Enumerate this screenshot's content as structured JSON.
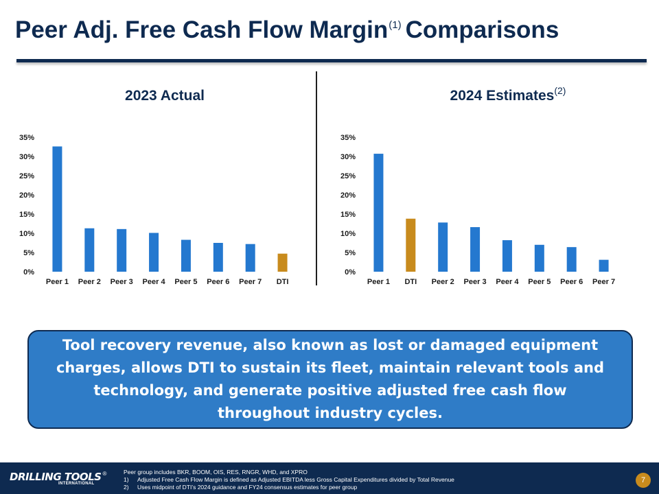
{
  "header": {
    "title_main": "Peer Adj. Free Cash Flow Margin",
    "title_sup": "(1)",
    "title_end": "Comparisons"
  },
  "colors": {
    "navy": "#0e2a50",
    "blue_bar": "#2478cf",
    "dti_bar": "#c88b1d",
    "callout_bg": "#2f7cc7"
  },
  "chart_data": [
    {
      "type": "bar",
      "title": "2023 Actual",
      "title_sup": "",
      "categories": [
        "Peer 1",
        "Peer 2",
        "Peer 3",
        "Peer 4",
        "Peer 5",
        "Peer 6",
        "Peer 7",
        "DTI"
      ],
      "values": [
        32.6,
        11.3,
        11.1,
        10.1,
        8.3,
        7.5,
        7.2,
        4.7
      ],
      "highlight": [
        "DTI"
      ],
      "ylim": [
        0,
        35
      ],
      "yticks": [
        "0%",
        "5%",
        "10%",
        "15%",
        "20%",
        "25%",
        "30%",
        "35%"
      ],
      "xlabel": "",
      "ylabel": "",
      "grid": false
    },
    {
      "type": "bar",
      "title": "2024 Estimates",
      "title_sup": "(2)",
      "categories": [
        "Peer 1",
        "DTI",
        "Peer 2",
        "Peer 3",
        "Peer 4",
        "Peer 5",
        "Peer 6",
        "Peer 7"
      ],
      "values": [
        30.7,
        13.8,
        12.8,
        11.6,
        8.2,
        7.0,
        6.4,
        3.1
      ],
      "highlight": [
        "DTI"
      ],
      "ylim": [
        0,
        35
      ],
      "yticks": [
        "0%",
        "5%",
        "10%",
        "15%",
        "20%",
        "25%",
        "30%",
        "35%"
      ],
      "xlabel": "",
      "ylabel": "",
      "grid": false
    }
  ],
  "callout": {
    "text": "Tool recovery revenue, also known as lost or damaged equipment charges, allows DTI to sustain its fleet, maintain relevant tools and technology, and generate positive adjusted free cash flow throughout industry cycles."
  },
  "footer": {
    "logo_main": "DRILLING TOOLS",
    "logo_reg": "®",
    "logo_sub": "INTERNATIONAL",
    "note_intro": "Peer group includes BKR, BOOM, OIS, RES, RNGR, WHD, and XPRO",
    "notes": [
      {
        "num": "1)",
        "text": "Adjusted Free Cash Flow Margin is defined as Adjusted EBITDA less Gross Capital Expenditures divided by Total Revenue"
      },
      {
        "num": "2)",
        "text": "Uses midpoint of DTI’s 2024 guidance and FY24 consensus estimates for peer group"
      }
    ],
    "page_number": "7"
  }
}
